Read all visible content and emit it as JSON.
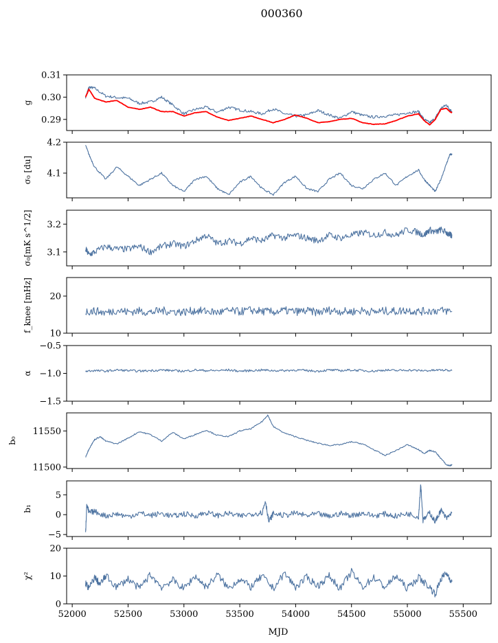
{
  "figure_title": "000360",
  "x_axis": {
    "label": "MJD",
    "range": [
      51950,
      55750
    ],
    "ticks": [
      52000,
      52500,
      53000,
      53500,
      54000,
      54500,
      55000,
      55500
    ],
    "tick_labels": [
      "52000",
      "52500",
      "53000",
      "53500",
      "54000",
      "54500",
      "55000",
      "55500"
    ]
  },
  "colors": {
    "series": "#4c72a0",
    "fit": "#ff0000"
  },
  "chart_data": [
    {
      "type": "line",
      "panel": "g",
      "ylabel": "g",
      "ylim": [
        0.285,
        0.31
      ],
      "yticks": [
        0.29,
        0.3,
        0.31
      ],
      "ytick_labels": [
        "0.29",
        "0.30",
        "0.31"
      ],
      "series": [
        {
          "x": [
            52120,
            52150,
            52200,
            52300,
            52400,
            52500,
            52600,
            52700,
            52800,
            52900,
            53000,
            53100,
            53200,
            53300,
            53400,
            53500,
            53600,
            53700,
            53800,
            53900,
            54000,
            54100,
            54200,
            54300,
            54400,
            54500,
            54600,
            54700,
            54800,
            54900,
            55000,
            55100,
            55150,
            55200,
            55250,
            55300,
            55350,
            55380,
            55400
          ],
          "y": [
            0.3,
            0.3045,
            0.304,
            0.3005,
            0.2998,
            0.2995,
            0.2972,
            0.2978,
            0.3,
            0.2965,
            0.2925,
            0.2945,
            0.2955,
            0.2932,
            0.2955,
            0.2942,
            0.2935,
            0.2925,
            0.2948,
            0.2925,
            0.2915,
            0.292,
            0.294,
            0.292,
            0.2905,
            0.2935,
            0.2918,
            0.291,
            0.2915,
            0.292,
            0.293,
            0.2935,
            0.29,
            0.2885,
            0.2905,
            0.295,
            0.2965,
            0.2945,
            0.2935
          ]
        },
        {
          "x": [
            52120,
            52150,
            52200,
            52300,
            52400,
            52500,
            52600,
            52700,
            52800,
            52900,
            53000,
            53100,
            53200,
            53300,
            53400,
            53500,
            53600,
            53700,
            53800,
            53900,
            54000,
            54100,
            54200,
            54300,
            54400,
            54500,
            54600,
            54700,
            54800,
            54900,
            55000,
            55100,
            55150,
            55200,
            55250,
            55300,
            55350,
            55380,
            55400
          ],
          "y": [
            0.3,
            0.3035,
            0.2995,
            0.2978,
            0.2985,
            0.2955,
            0.2945,
            0.2955,
            0.2935,
            0.2935,
            0.2915,
            0.293,
            0.2935,
            0.291,
            0.2895,
            0.2905,
            0.2915,
            0.29,
            0.2885,
            0.29,
            0.292,
            0.2905,
            0.2885,
            0.289,
            0.29,
            0.2905,
            0.2885,
            0.2878,
            0.288,
            0.2895,
            0.2915,
            0.2925,
            0.2895,
            0.2875,
            0.29,
            0.2945,
            0.295,
            0.2935,
            0.293
          ]
        }
      ]
    },
    {
      "type": "line",
      "panel": "sigma0_du",
      "ylabel": "σ₀ [du]",
      "ylim": [
        4.02,
        4.2
      ],
      "yticks": [
        4.1,
        4.2
      ],
      "ytick_labels": [
        "4.1",
        "4.2"
      ],
      "series": [
        {
          "x": [
            52120,
            52150,
            52200,
            52300,
            52400,
            52500,
            52600,
            52700,
            52800,
            52900,
            53000,
            53100,
            53200,
            53300,
            53400,
            53500,
            53600,
            53700,
            53800,
            53900,
            54000,
            54100,
            54200,
            54300,
            54400,
            54500,
            54600,
            54700,
            54800,
            54900,
            55000,
            55100,
            55150,
            55200,
            55250,
            55300,
            55350,
            55380,
            55400
          ],
          "y": [
            4.19,
            4.16,
            4.12,
            4.08,
            4.12,
            4.09,
            4.06,
            4.08,
            4.1,
            4.06,
            4.04,
            4.08,
            4.09,
            4.05,
            4.03,
            4.07,
            4.09,
            4.05,
            4.03,
            4.07,
            4.09,
            4.05,
            4.04,
            4.08,
            4.1,
            4.06,
            4.05,
            4.08,
            4.1,
            4.06,
            4.09,
            4.11,
            4.08,
            4.06,
            4.04,
            4.08,
            4.13,
            4.16,
            4.16
          ]
        }
      ]
    },
    {
      "type": "line",
      "panel": "sigma0_mk",
      "ylabel": "σ₀[mK s^1/2]",
      "ylim": [
        3.05,
        3.25
      ],
      "yticks": [
        3.1,
        3.2
      ],
      "ytick_labels": [
        "3.1",
        "3.2"
      ],
      "series": [
        {
          "x": [
            52120,
            52150,
            52200,
            52300,
            52400,
            52500,
            52600,
            52700,
            52800,
            52900,
            53000,
            53100,
            53200,
            53300,
            53400,
            53500,
            53600,
            53700,
            53800,
            53900,
            54000,
            54100,
            54200,
            54300,
            54400,
            54500,
            54600,
            54700,
            54800,
            54900,
            55000,
            55100,
            55150,
            55200,
            55250,
            55300,
            55350,
            55380,
            55400
          ],
          "y": [
            3.11,
            3.09,
            3.1,
            3.12,
            3.11,
            3.11,
            3.12,
            3.1,
            3.12,
            3.13,
            3.12,
            3.14,
            3.16,
            3.13,
            3.14,
            3.13,
            3.15,
            3.14,
            3.16,
            3.15,
            3.16,
            3.15,
            3.14,
            3.16,
            3.15,
            3.16,
            3.17,
            3.16,
            3.17,
            3.16,
            3.18,
            3.17,
            3.16,
            3.18,
            3.17,
            3.18,
            3.17,
            3.16,
            3.16
          ]
        }
      ]
    },
    {
      "type": "line",
      "panel": "fknee",
      "ylabel": "f_knee [mHz]",
      "ylim": [
        10,
        25
      ],
      "yticks": [
        10,
        20
      ],
      "ytick_labels": [
        "10",
        "20"
      ],
      "series": [
        {
          "x": [
            52120,
            52200,
            52300,
            52400,
            52500,
            52600,
            52700,
            52800,
            52900,
            53000,
            53100,
            53200,
            53300,
            53400,
            53500,
            53600,
            53700,
            53800,
            53900,
            54000,
            54100,
            54200,
            54300,
            54400,
            54500,
            54600,
            54700,
            54800,
            54900,
            55000,
            55100,
            55200,
            55300,
            55400
          ],
          "y": [
            15.8,
            16.0,
            15.5,
            16.2,
            15.7,
            16.0,
            15.6,
            16.1,
            15.8,
            15.7,
            16.1,
            15.9,
            15.6,
            16.0,
            15.8,
            16.2,
            15.9,
            15.7,
            16.1,
            15.8,
            16.0,
            15.6,
            16.2,
            15.9,
            15.8,
            16.1,
            15.7,
            16.0,
            15.9,
            16.2,
            15.8,
            16.0,
            16.1,
            15.9
          ]
        }
      ]
    },
    {
      "type": "line",
      "panel": "alpha",
      "ylabel": "α",
      "ylim": [
        -1.5,
        -0.5
      ],
      "yticks": [
        -1.5,
        -1.0,
        -0.5
      ],
      "ytick_labels": [
        "−1.5",
        "−1.0",
        "−0.5"
      ],
      "series": [
        {
          "x": [
            52120,
            52200,
            52300,
            52400,
            52500,
            52600,
            52700,
            52800,
            52900,
            53000,
            53100,
            53200,
            53300,
            53400,
            53500,
            53600,
            53700,
            53800,
            53900,
            54000,
            54100,
            54200,
            54300,
            54400,
            54500,
            54600,
            54700,
            54800,
            54900,
            55000,
            55100,
            55200,
            55300,
            55400
          ],
          "y": [
            -0.96,
            -0.95,
            -0.96,
            -0.94,
            -0.95,
            -0.96,
            -0.95,
            -0.94,
            -0.95,
            -0.96,
            -0.94,
            -0.95,
            -0.95,
            -0.94,
            -0.96,
            -0.95,
            -0.94,
            -0.95,
            -0.95,
            -0.94,
            -0.95,
            -0.96,
            -0.94,
            -0.95,
            -0.94,
            -0.95,
            -0.96,
            -0.94,
            -0.95,
            -0.94,
            -0.95,
            -0.95,
            -0.94,
            -0.95
          ]
        }
      ]
    },
    {
      "type": "line",
      "panel": "b0",
      "ylabel": "b₀",
      "ylim": [
        11498,
        11575
      ],
      "yticks": [
        11500,
        11550
      ],
      "ytick_labels": [
        "11500",
        "11550"
      ],
      "series": [
        {
          "x": [
            52120,
            52150,
            52200,
            52250,
            52300,
            52400,
            52500,
            52600,
            52700,
            52800,
            52900,
            53000,
            53100,
            53200,
            53300,
            53400,
            53500,
            53600,
            53700,
            53750,
            53800,
            53900,
            54000,
            54100,
            54200,
            54300,
            54400,
            54500,
            54600,
            54700,
            54800,
            54900,
            55000,
            55100,
            55150,
            55200,
            55250,
            55300,
            55350,
            55380,
            55400
          ],
          "y": [
            11514,
            11525,
            11538,
            11542,
            11536,
            11532,
            11540,
            11549,
            11545,
            11536,
            11548,
            11539,
            11545,
            11551,
            11544,
            11542,
            11550,
            11553,
            11563,
            11572,
            11556,
            11547,
            11542,
            11537,
            11533,
            11530,
            11531,
            11535,
            11532,
            11524,
            11516,
            11523,
            11531,
            11524,
            11519,
            11523,
            11521,
            11512,
            11503,
            11502,
            11503
          ]
        }
      ]
    },
    {
      "type": "line",
      "panel": "b1",
      "ylabel": "b₁",
      "ylim": [
        -5.5,
        8.5
      ],
      "yticks": [
        -5,
        0,
        5
      ],
      "ytick_labels": [
        "−5",
        "0",
        "5"
      ],
      "series": [
        {
          "x": [
            52120,
            52130,
            52150,
            52200,
            52300,
            52400,
            52500,
            52600,
            52700,
            52800,
            52900,
            53000,
            53100,
            53200,
            53300,
            53400,
            53500,
            53600,
            53700,
            53730,
            53760,
            53800,
            53900,
            54000,
            54100,
            54200,
            54300,
            54400,
            54500,
            54600,
            54700,
            54800,
            54900,
            55000,
            55100,
            55120,
            55140,
            55200,
            55250,
            55300,
            55350,
            55400
          ],
          "y": [
            -4.5,
            2.5,
            0.5,
            0.8,
            -0.3,
            0.2,
            -0.5,
            0.4,
            -0.2,
            0.3,
            -0.4,
            0.2,
            -0.3,
            0.5,
            -0.2,
            0.3,
            -0.4,
            0.2,
            0.5,
            3.5,
            -1.8,
            0.3,
            -0.2,
            0.4,
            -0.3,
            0.2,
            -0.5,
            0.3,
            -0.2,
            0.4,
            -0.3,
            0.2,
            -0.4,
            0.3,
            -0.5,
            7.8,
            -1.5,
            0.5,
            -1.8,
            1.2,
            -1.0,
            0.5
          ]
        }
      ]
    },
    {
      "type": "line",
      "panel": "chi2",
      "ylabel": "χ²",
      "ylim": [
        0,
        20
      ],
      "yticks": [
        0,
        10,
        20
      ],
      "ytick_labels": [
        "0",
        "10",
        "20"
      ],
      "series": [
        {
          "x": [
            52120,
            52150,
            52200,
            52250,
            52300,
            52400,
            52500,
            52600,
            52700,
            52800,
            52900,
            53000,
            53100,
            53200,
            53300,
            53400,
            53500,
            53600,
            53700,
            53800,
            53900,
            54000,
            54100,
            54200,
            54300,
            54400,
            54500,
            54600,
            54700,
            54800,
            54900,
            55000,
            55100,
            55200,
            55250,
            55300,
            55350,
            55400
          ],
          "y": [
            7.5,
            5.5,
            9.5,
            7.0,
            10.0,
            6.0,
            9.0,
            5.5,
            10.5,
            6.0,
            8.5,
            5.5,
            10.0,
            6.0,
            10.5,
            5.5,
            9.0,
            6.0,
            10.0,
            5.5,
            11.0,
            6.0,
            9.5,
            6.5,
            10.0,
            5.5,
            11.5,
            6.0,
            9.5,
            6.0,
            10.0,
            5.5,
            9.5,
            6.0,
            3.5,
            9.0,
            11.0,
            8.0
          ]
        }
      ]
    }
  ]
}
